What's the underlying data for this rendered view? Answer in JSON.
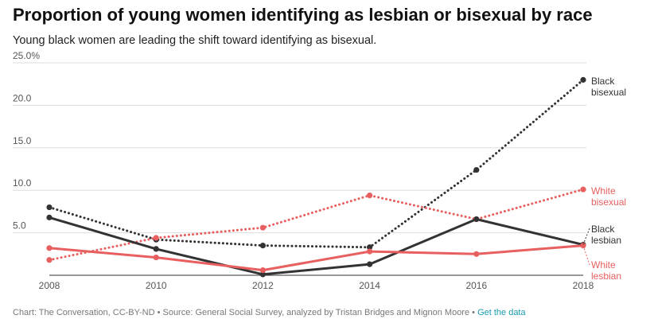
{
  "title": "Proportion of young women identifying as lesbian or bisexual by race",
  "subtitle": "Young black women are leading the shift toward identifying as bisexual.",
  "footer": {
    "credit": "Chart: The Conversation, CC-BY-ND",
    "separator1": " • ",
    "source": "Source: General Social Survey, analyzed by Tristan Bridges and Mignon Moore",
    "separator2": " • ",
    "link": "Get the data"
  },
  "chart_data": {
    "type": "line",
    "x": [
      2008,
      2010,
      2012,
      2014,
      2016,
      2018
    ],
    "x_tick_labels": [
      "2008",
      "2010",
      "2012",
      "2014",
      "2016",
      "2018"
    ],
    "ylim": [
      0,
      25
    ],
    "y_ticks": [
      5,
      10,
      15,
      20,
      25
    ],
    "y_tick_labels": [
      "5.0",
      "10.0",
      "15.0",
      "20.0",
      "25.0%"
    ],
    "grid": true,
    "xlabel": "",
    "ylabel": "",
    "series": [
      {
        "name": "Black bisexual",
        "label_lines": [
          "Black",
          "bisexual"
        ],
        "color": "#333333",
        "style": "dotted",
        "values": [
          8.0,
          4.2,
          3.5,
          3.3,
          12.4,
          23.0
        ]
      },
      {
        "name": "White bisexual",
        "label_lines": [
          "White",
          "bisexual"
        ],
        "color": "#e85f5f",
        "style": "dotted",
        "values": [
          1.8,
          4.4,
          5.6,
          9.4,
          6.6,
          10.1
        ]
      },
      {
        "name": "Black lesbian",
        "label_lines": [
          "Black",
          "lesbian"
        ],
        "color": "#333333",
        "style": "solid",
        "values": [
          6.8,
          3.1,
          0.1,
          1.3,
          6.6,
          3.6
        ]
      },
      {
        "name": "White lesbian",
        "label_lines": [
          "White",
          "lesbian"
        ],
        "color": "#e85f5f",
        "style": "solid",
        "values": [
          3.2,
          2.1,
          0.6,
          2.8,
          2.5,
          3.5
        ]
      }
    ]
  }
}
